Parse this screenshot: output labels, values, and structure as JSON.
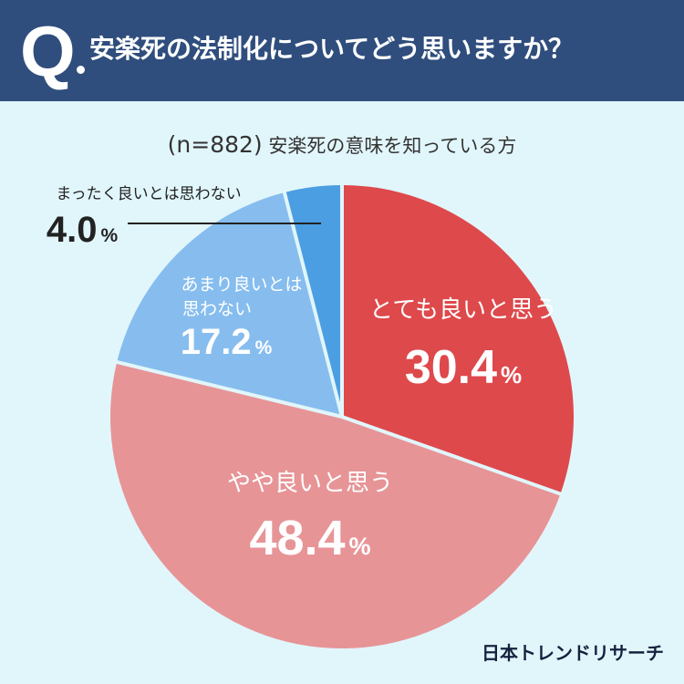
{
  "header": {
    "q_mark": "Q",
    "question": "安楽死の法制化についてどう思いますか？"
  },
  "subtitle": {
    "sample": "(n=882)",
    "group": "安楽死の意味を知っている方"
  },
  "brand": "日本トレンドリサーチ",
  "colors": {
    "header_bg": "#2f4e7d",
    "background": "#e1f6fb",
    "slice_1": "#de494c",
    "slice_2": "#e79497",
    "slice_3": "#86bdee",
    "slice_4": "#4c9ee2",
    "separator": "#e1f6fb"
  },
  "chart_data": {
    "type": "pie",
    "start": "12 o'clock",
    "direction": "clockwise",
    "slices": [
      {
        "label": "とても良いと思う",
        "value": 30.4,
        "unit": "%",
        "color": "#de494c"
      },
      {
        "label": "やや良いと思う",
        "value": 48.4,
        "unit": "%",
        "color": "#e79497"
      },
      {
        "label": "あまり良いとは思わない",
        "value": 17.2,
        "unit": "%",
        "color": "#86bdee"
      },
      {
        "label": "まったく良いとは思わない",
        "value": 4.0,
        "unit": "%",
        "color": "#4c9ee2"
      }
    ]
  }
}
